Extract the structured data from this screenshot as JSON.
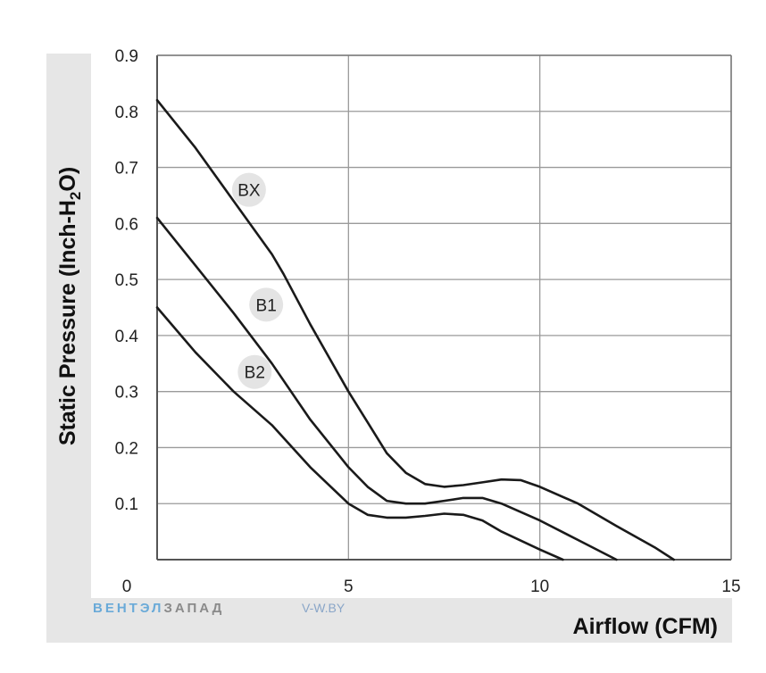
{
  "chart_data": {
    "type": "line",
    "title": "",
    "xlabel": "Airflow (CFM)",
    "ylabel": "Static Pressure (Inch-H2O)",
    "ylabel_parts": {
      "before": "Static Pressure (Inch-H",
      "sub": "2",
      "after": "O)"
    },
    "xlim": [
      0,
      15
    ],
    "ylim": [
      0,
      0.9
    ],
    "x_ticks": [
      0,
      5,
      10,
      15
    ],
    "x_tick_labels": [
      "0",
      "5",
      "10",
      "15"
    ],
    "y_ticks": [
      0.1,
      0.2,
      0.3,
      0.4,
      0.5,
      0.6,
      0.7,
      0.8,
      0.9
    ],
    "y_tick_labels": [
      "0.1",
      "0.2",
      "0.3",
      "0.4",
      "0.5",
      "0.6",
      "0.7",
      "0.8",
      "0.9"
    ],
    "grid": true,
    "series": [
      {
        "name": "BX",
        "label_at": [
          2.4,
          0.66
        ],
        "x": [
          0,
          1,
          2,
          3,
          3.3,
          4,
          5,
          5.5,
          6,
          6.5,
          7,
          7.5,
          8,
          8.5,
          9,
          9.5,
          10,
          11,
          12,
          13,
          13.5
        ],
        "y": [
          0.82,
          0.735,
          0.64,
          0.545,
          0.51,
          0.42,
          0.3,
          0.245,
          0.19,
          0.155,
          0.135,
          0.13,
          0.133,
          0.138,
          0.143,
          0.142,
          0.13,
          0.1,
          0.06,
          0.022,
          0.0
        ]
      },
      {
        "name": "B1",
        "label_at": [
          2.85,
          0.455
        ],
        "x": [
          0,
          1,
          2,
          3,
          4,
          5,
          5.5,
          6,
          6.5,
          7,
          7.5,
          8,
          8.5,
          9,
          10,
          11,
          12
        ],
        "y": [
          0.61,
          0.525,
          0.44,
          0.35,
          0.25,
          0.165,
          0.13,
          0.105,
          0.1,
          0.1,
          0.105,
          0.11,
          0.11,
          0.1,
          0.07,
          0.035,
          0.0
        ]
      },
      {
        "name": "B2",
        "label_at": [
          2.55,
          0.335
        ],
        "x": [
          0,
          1,
          2,
          3,
          4,
          5,
          5.5,
          6,
          6.5,
          7,
          7.5,
          8,
          8.5,
          9,
          10,
          10.6
        ],
        "y": [
          0.45,
          0.37,
          0.3,
          0.24,
          0.165,
          0.1,
          0.08,
          0.075,
          0.075,
          0.078,
          0.082,
          0.08,
          0.07,
          0.05,
          0.018,
          0.0
        ]
      }
    ]
  },
  "watermark": {
    "brand_part1": "ВЕНТЭЛ",
    "brand_part2": "ЗАПАД",
    "site": "V-W.BY"
  }
}
